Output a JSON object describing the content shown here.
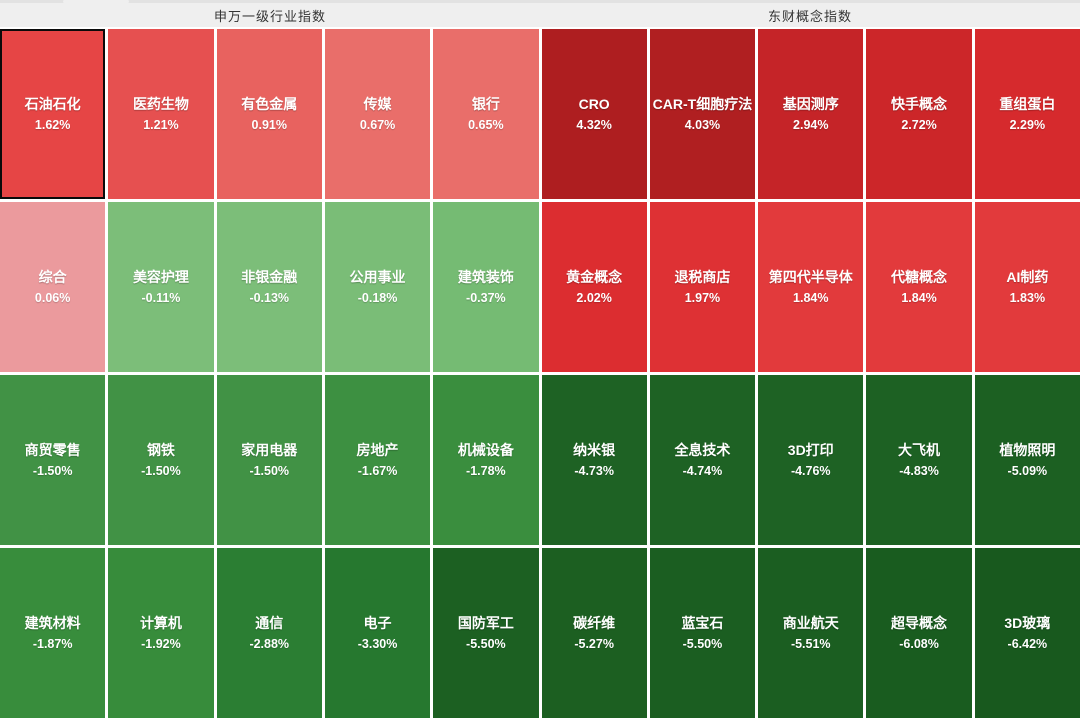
{
  "sections": [
    {
      "title": "申万一级行业指数",
      "tiles": [
        {
          "name": "石油石化",
          "change": "1.62%",
          "color": "#e64545",
          "selected": true
        },
        {
          "name": "医药生物",
          "change": "1.21%",
          "color": "#e65050"
        },
        {
          "name": "有色金属",
          "change": "0.91%",
          "color": "#e8625f"
        },
        {
          "name": "传媒",
          "change": "0.67%",
          "color": "#e96e6a"
        },
        {
          "name": "银行",
          "change": "0.65%",
          "color": "#e96e6a"
        },
        {
          "name": "综合",
          "change": "0.06%",
          "color": "#eb9a9d"
        },
        {
          "name": "美容护理",
          "change": "-0.11%",
          "color": "#7cbe79"
        },
        {
          "name": "非银金融",
          "change": "-0.13%",
          "color": "#7cbe79"
        },
        {
          "name": "公用事业",
          "change": "-0.18%",
          "color": "#7abd77"
        },
        {
          "name": "建筑装饰",
          "change": "-0.37%",
          "color": "#75bb73"
        },
        {
          "name": "商贸零售",
          "change": "-1.50%",
          "color": "#419245"
        },
        {
          "name": "钢铁",
          "change": "-1.50%",
          "color": "#419245"
        },
        {
          "name": "家用电器",
          "change": "-1.50%",
          "color": "#419245"
        },
        {
          "name": "房地产",
          "change": "-1.67%",
          "color": "#3d9041"
        },
        {
          "name": "机械设备",
          "change": "-1.78%",
          "color": "#3a8e3e"
        },
        {
          "name": "建筑材料",
          "change": "-1.87%",
          "color": "#388d3c"
        },
        {
          "name": "计算机",
          "change": "-1.92%",
          "color": "#378c3b"
        },
        {
          "name": "通信",
          "change": "-2.88%",
          "color": "#2b7e33"
        },
        {
          "name": "电子",
          "change": "-3.30%",
          "color": "#26782f"
        },
        {
          "name": "国防军工",
          "change": "-5.50%",
          "color": "#1c6022"
        }
      ]
    },
    {
      "title": "东财概念指数",
      "tiles": [
        {
          "name": "CRO",
          "change": "4.32%",
          "color": "#ae1e20"
        },
        {
          "name": "CAR-T细胞疗法",
          "change": "4.03%",
          "color": "#b01f21"
        },
        {
          "name": "基因测序",
          "change": "2.94%",
          "color": "#c52428"
        },
        {
          "name": "快手概念",
          "change": "2.72%",
          "color": "#cc2629"
        },
        {
          "name": "重组蛋白",
          "change": "2.29%",
          "color": "#d62a2d"
        },
        {
          "name": "黄金概念",
          "change": "2.02%",
          "color": "#dc2d30"
        },
        {
          "name": "退税商店",
          "change": "1.97%",
          "color": "#de3134"
        },
        {
          "name": "第四代半导体",
          "change": "1.84%",
          "color": "#e23a3c"
        },
        {
          "name": "代糖概念",
          "change": "1.84%",
          "color": "#e23a3c"
        },
        {
          "name": "AI制药",
          "change": "1.83%",
          "color": "#e23a3c"
        },
        {
          "name": "纳米银",
          "change": "-4.73%",
          "color": "#1e6224"
        },
        {
          "name": "全息技术",
          "change": "-4.74%",
          "color": "#1e6224"
        },
        {
          "name": "3D打印",
          "change": "-4.76%",
          "color": "#1e6224"
        },
        {
          "name": "大飞机",
          "change": "-4.83%",
          "color": "#1d6123"
        },
        {
          "name": "植物照明",
          "change": "-5.09%",
          "color": "#1c6022"
        },
        {
          "name": "碳纤维",
          "change": "-5.27%",
          "color": "#1c5f21"
        },
        {
          "name": "蓝宝石",
          "change": "-5.50%",
          "color": "#1b5e21"
        },
        {
          "name": "商业航天",
          "change": "-5.51%",
          "color": "#1b5e21"
        },
        {
          "name": "超导概念",
          "change": "-6.08%",
          "color": "#195c1f"
        },
        {
          "name": "3D玻璃",
          "change": "-6.42%",
          "color": "#18591e"
        }
      ]
    }
  ],
  "colors": {
    "positive_strong": "#ae1e20",
    "positive_mild": "#e96e6a",
    "positive_faint": "#eb9a9d",
    "negative_faint": "#7cbe79",
    "negative_mild": "#419245",
    "negative_strong": "#18591e",
    "gap": "#ffffff",
    "header_bg": "#efefef",
    "header_text": "#333333",
    "tile_text": "#ffffff",
    "selected_border": "#0a0a0a"
  },
  "chart_data": [
    {
      "type": "heatmap",
      "title": "申万一级行业指数",
      "categories": [
        "石油石化",
        "医药生物",
        "有色金属",
        "传媒",
        "银行",
        "综合",
        "美容护理",
        "非银金融",
        "公用事业",
        "建筑装饰",
        "商贸零售",
        "钢铁",
        "家用电器",
        "房地产",
        "机械设备",
        "建筑材料",
        "计算机",
        "通信",
        "电子",
        "国防军工"
      ],
      "values": [
        1.62,
        1.21,
        0.91,
        0.67,
        0.65,
        0.06,
        -0.11,
        -0.13,
        -0.18,
        -0.37,
        -1.5,
        -1.5,
        -1.5,
        -1.67,
        -1.78,
        -1.87,
        -1.92,
        -2.88,
        -3.3,
        -5.5
      ],
      "unit": "%",
      "layout": "4 rows x 5 cols, sorted descending",
      "color_rule": "red = positive change, green = negative change, intensity scales with magnitude"
    },
    {
      "type": "heatmap",
      "title": "东财概念指数",
      "categories": [
        "CRO",
        "CAR-T细胞疗法",
        "基因测序",
        "快手概念",
        "重组蛋白",
        "黄金概念",
        "退税商店",
        "第四代半导体",
        "代糖概念",
        "AI制药",
        "纳米银",
        "全息技术",
        "3D打印",
        "大飞机",
        "植物照明",
        "碳纤维",
        "蓝宝石",
        "商业航天",
        "超导概念",
        "3D玻璃"
      ],
      "values": [
        4.32,
        4.03,
        2.94,
        2.72,
        2.29,
        2.02,
        1.97,
        1.84,
        1.84,
        1.83,
        -4.73,
        -4.74,
        -4.76,
        -4.83,
        -5.09,
        -5.27,
        -5.5,
        -5.51,
        -6.08,
        -6.42
      ],
      "unit": "%",
      "layout": "4 rows x 5 cols, sorted descending",
      "color_rule": "red = positive change, green = negative change, intensity scales with magnitude"
    }
  ]
}
